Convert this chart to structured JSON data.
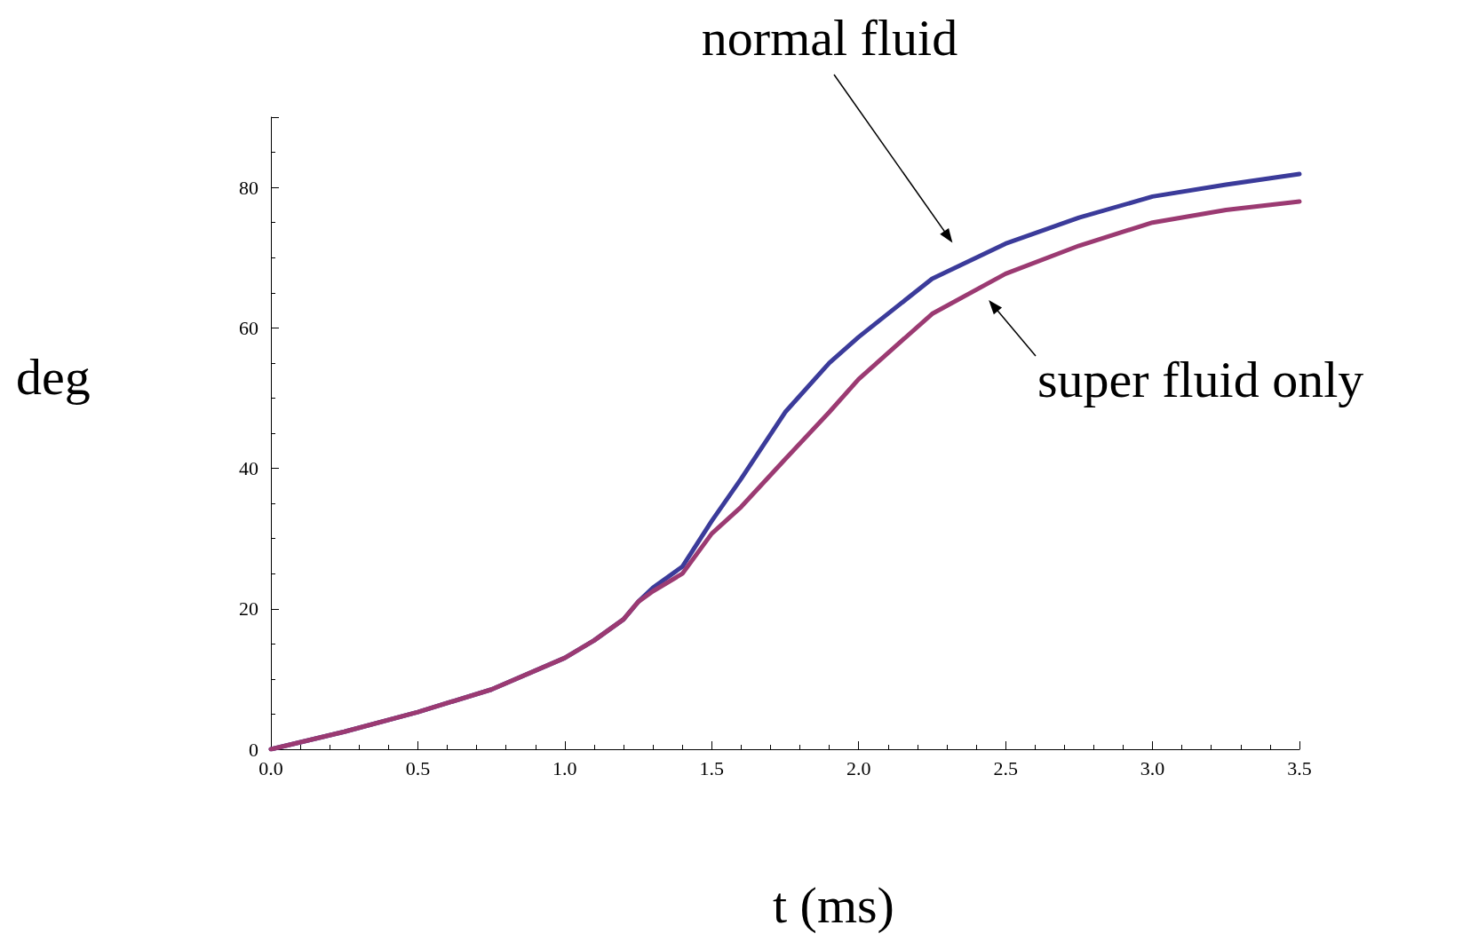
{
  "chart_data": {
    "type": "line",
    "xlabel": "t (ms)",
    "ylabel": "deg",
    "x": [
      0,
      0.25,
      0.5,
      0.75,
      1.0,
      1.1,
      1.2,
      1.25,
      1.3,
      1.4,
      1.5,
      1.6,
      1.75,
      1.9,
      2.0,
      2.25,
      2.5,
      2.75,
      3.0,
      3.25,
      3.5
    ],
    "series": [
      {
        "color": "#3b3b9a",
        "values": [
          0,
          2.5,
          5.3,
          8.5,
          13,
          15.5,
          18.5,
          21,
          23,
          26,
          32.5,
          38.5,
          48,
          55,
          58.7,
          67,
          72,
          75.7,
          78.7,
          80.4,
          81.9
        ]
      },
      {
        "color": "#9b3a72",
        "values": [
          0,
          2.5,
          5.3,
          8.5,
          13,
          15.5,
          18.5,
          21,
          22.5,
          25,
          30.7,
          34.5,
          41.3,
          48,
          52.7,
          62,
          67.7,
          71.7,
          75,
          76.8,
          78
        ]
      }
    ],
    "xlim": [
      0,
      3.5
    ],
    "xticks": [
      {
        "value": 0,
        "label": "0.0"
      },
      0.5,
      {
        "value": 1,
        "label": "1.0"
      },
      1.5,
      {
        "value": 2,
        "label": "2.0"
      },
      2.5,
      {
        "value": 3,
        "label": "3.0"
      },
      3.5
    ],
    "ylim": [
      0,
      90
    ],
    "yticks": [
      0,
      20,
      40,
      60,
      80
    ],
    "grid": false,
    "marker": "none",
    "line_style": "solid",
    "annotations": [
      "normal fluid",
      "super fluid only"
    ]
  }
}
